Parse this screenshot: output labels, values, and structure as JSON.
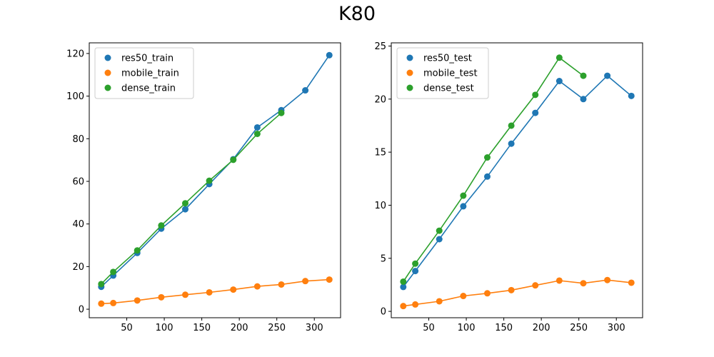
{
  "figure": {
    "title": "K80"
  },
  "chart_data": [
    {
      "type": "scatter",
      "title": "",
      "xlabel": "",
      "ylabel": "",
      "xlim": [
        0,
        335
      ],
      "ylim": [
        -4,
        125
      ],
      "xticks": [
        50,
        100,
        150,
        200,
        250,
        300
      ],
      "yticks": [
        0,
        20,
        40,
        60,
        80,
        100,
        120
      ],
      "legend": "top-left",
      "grid": false,
      "series": [
        {
          "name": "res50_train",
          "color": "#1f77b4",
          "x": [
            16,
            32,
            64,
            96,
            128,
            160,
            192,
            224,
            256,
            288,
            320
          ],
          "y": [
            10.5,
            15.8,
            26.4,
            37.8,
            46.9,
            58.7,
            70.4,
            85.3,
            93.4,
            102.7,
            119.2
          ]
        },
        {
          "name": "mobile_train",
          "color": "#ff7f0e",
          "x": [
            16,
            32,
            64,
            96,
            128,
            160,
            192,
            224,
            256,
            288,
            320
          ],
          "y": [
            2.6,
            2.9,
            4.1,
            5.6,
            6.8,
            7.9,
            9.2,
            10.7,
            11.6,
            13.2,
            13.9
          ]
        },
        {
          "name": "dense_train",
          "color": "#2ca02c",
          "x": [
            16,
            32,
            64,
            96,
            128,
            160,
            192,
            224,
            256
          ],
          "y": [
            11.8,
            17.5,
            27.6,
            39.3,
            49.7,
            60.3,
            70.1,
            82.3,
            92.1
          ]
        }
      ]
    },
    {
      "type": "scatter",
      "title": "",
      "xlabel": "",
      "ylabel": "",
      "xlim": [
        0,
        335
      ],
      "ylim": [
        -0.6,
        25.3
      ],
      "xticks": [
        50,
        100,
        150,
        200,
        250,
        300
      ],
      "yticks": [
        0,
        5,
        10,
        15,
        20,
        25
      ],
      "legend": "top-left",
      "grid": false,
      "series": [
        {
          "name": "res50_test",
          "color": "#1f77b4",
          "x": [
            16,
            32,
            64,
            96,
            128,
            160,
            192,
            224,
            256,
            288,
            320
          ],
          "y": [
            2.3,
            3.8,
            6.8,
            9.9,
            12.7,
            15.8,
            18.7,
            21.7,
            20.0,
            22.2,
            20.3
          ]
        },
        {
          "name": "mobile_test",
          "color": "#ff7f0e",
          "x": [
            16,
            32,
            64,
            96,
            128,
            160,
            192,
            224,
            256,
            288,
            320
          ],
          "y": [
            0.5,
            0.65,
            0.95,
            1.45,
            1.7,
            2.0,
            2.45,
            2.9,
            2.65,
            2.95,
            2.7
          ]
        },
        {
          "name": "dense_test",
          "color": "#2ca02c",
          "x": [
            16,
            32,
            64,
            96,
            128,
            160,
            192,
            224,
            256
          ],
          "y": [
            2.8,
            4.5,
            7.6,
            10.9,
            14.5,
            17.5,
            20.4,
            23.9,
            22.2
          ]
        }
      ]
    }
  ]
}
